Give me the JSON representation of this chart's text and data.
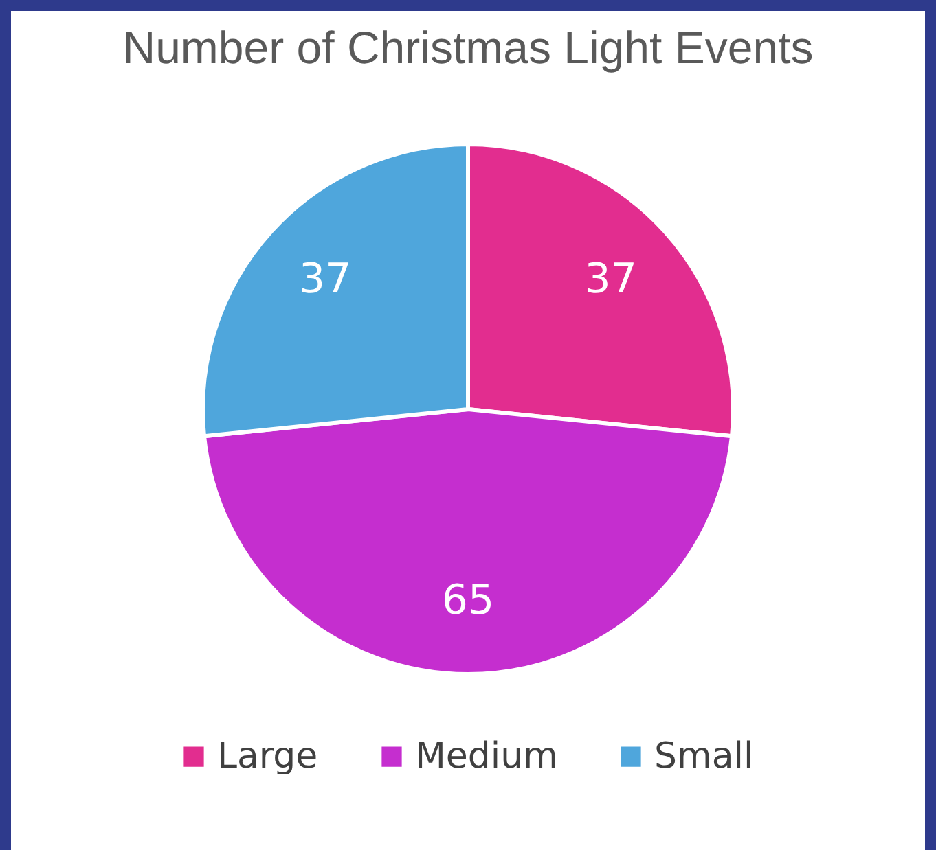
{
  "chart_data": {
    "type": "pie",
    "title": "Number of Christmas Light Events",
    "categories": [
      "Large",
      "Medium",
      "Small"
    ],
    "values": [
      37,
      65,
      37
    ],
    "colors": [
      "#e22d8f",
      "#c52ecf",
      "#4fa6dc"
    ],
    "data_labels": true,
    "legend": "bottom"
  }
}
